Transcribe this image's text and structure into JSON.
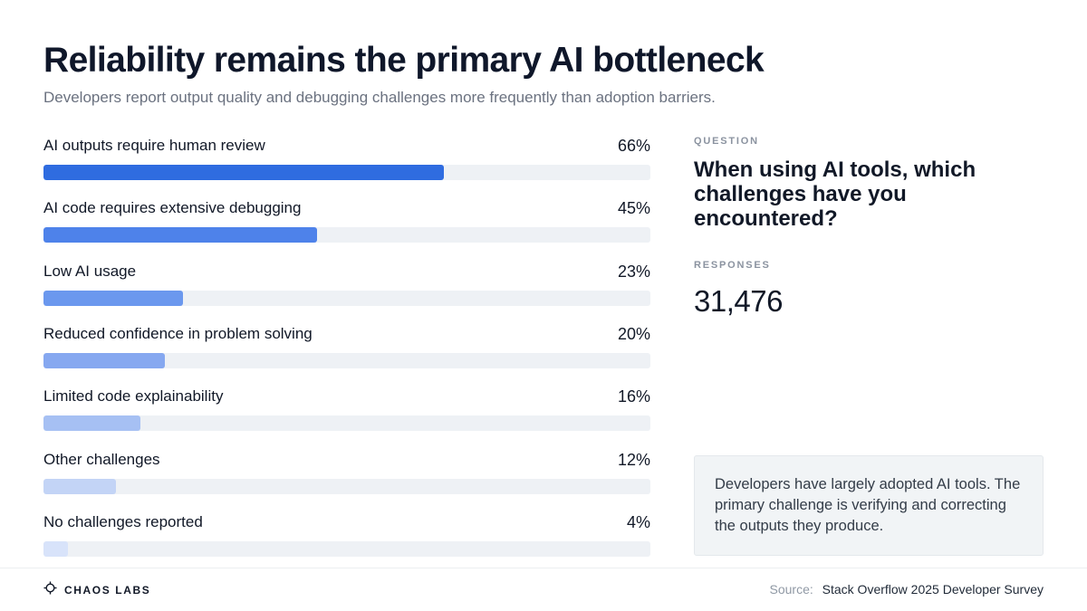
{
  "header": {
    "title": "Reliability remains the primary AI bottleneck",
    "subtitle": "Developers report output quality and debugging challenges more frequently than adoption barriers."
  },
  "chart_data": {
    "type": "bar",
    "orientation": "horizontal",
    "categories": [
      "AI outputs require human review",
      "AI code requires extensive debugging",
      "Low AI usage",
      "Reduced confidence in problem solving",
      "Limited code explainability",
      "Other challenges",
      "No challenges reported"
    ],
    "values": [
      66,
      45,
      23,
      20,
      16,
      12,
      4
    ],
    "value_labels": [
      "66%",
      "45%",
      "23%",
      "20%",
      "16%",
      "12%",
      "4%"
    ],
    "xlim": [
      0,
      100
    ],
    "bar_colors": [
      "#2f6ce0",
      "#4e82ea",
      "#6b98ee",
      "#86a8f0",
      "#a6c0f3",
      "#c3d4f6",
      "#d8e3fa"
    ],
    "track_color": "#eef1f5"
  },
  "side": {
    "question_label": "QUESTION",
    "question": "When using AI tools, which challenges have you encountered?",
    "responses_label": "RESPONSES",
    "responses": "31,476"
  },
  "note": {
    "text": "Developers have largely adopted AI tools. The primary challenge is verifying and correcting the outputs they produce."
  },
  "footer": {
    "brand": "CHAOS LABS",
    "brand_icon": "chaos-labs-logo-icon",
    "source_label": "Source:",
    "source": "Stack Overflow 2025 Developer Survey"
  }
}
